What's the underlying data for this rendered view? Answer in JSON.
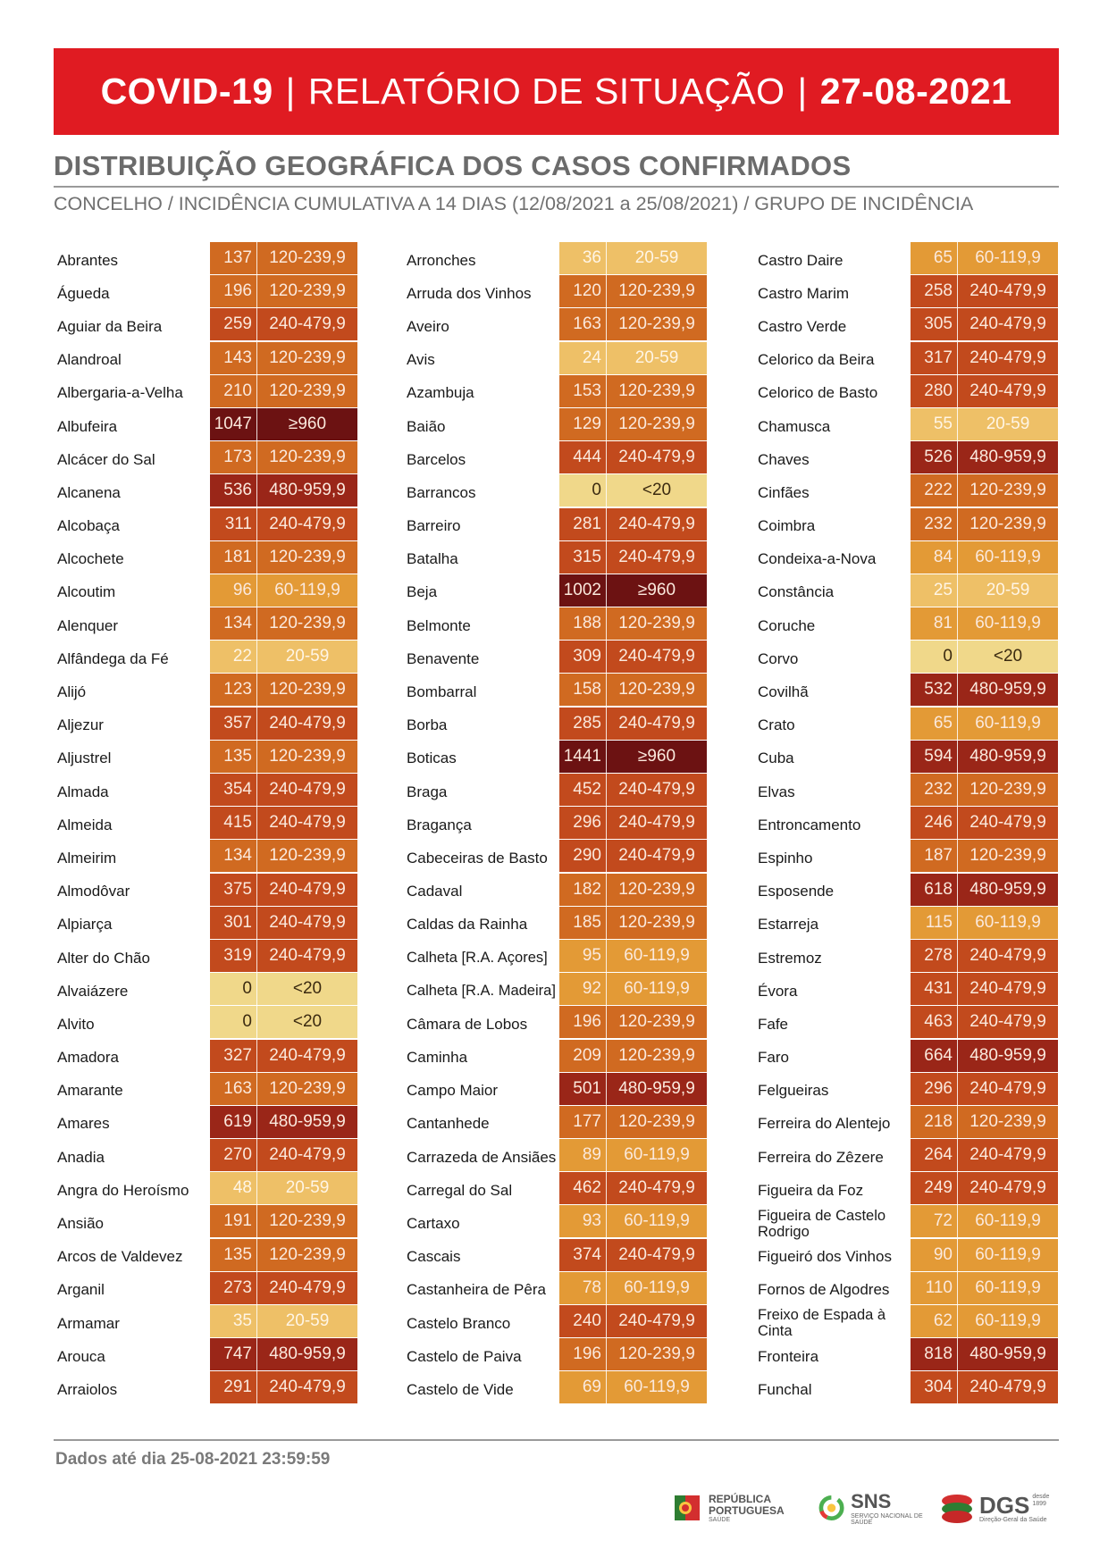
{
  "header": {
    "part1": "COVID-19",
    "sep": "|",
    "part2": "RELATÓRIO DE SITUAÇÃO",
    "part3": "27-08-2021"
  },
  "section_title": "DISTRIBUIÇÃO GEOGRÁFICA DOS CASOS CONFIRMADOS",
  "subtitle": "CONCELHO / INCIDÊNCIA CUMULATIVA A 14 DIAS (12/08/2021 a 25/08/2021) / GRUPO DE INCIDÊNCIA",
  "footer": "Dados até dia 25-08-2021 23:59:59",
  "logos": {
    "republica_line1": "REPÚBLICA",
    "republica_line2": "PORTUGUESA",
    "republica_line3": "SAÚDE",
    "sns": "SNS",
    "sns_sub": "SERVIÇO NACIONAL DE SAÚDE",
    "dgs": "DGS",
    "dgs_since": "desde 1899",
    "dgs_sub": "Direção-Geral da Saúde"
  },
  "colors": {
    "lt20": "#f0d88a",
    "20-59": "#eec067",
    "60-119,9": "#e39a36",
    "120-239,9": "#d06a21",
    "240-479,9": "#c24a1d",
    "480-959,9": "#9a2618",
    "ge960": "#6c1212"
  },
  "columns": [
    [
      {
        "name": "Abrantes",
        "value": "137",
        "group": "120-239,9"
      },
      {
        "name": "Águeda",
        "value": "196",
        "group": "120-239,9"
      },
      {
        "name": "Aguiar da Beira",
        "value": "259",
        "group": "240-479,9"
      },
      {
        "name": "Alandroal",
        "value": "143",
        "group": "120-239,9"
      },
      {
        "name": "Albergaria-a-Velha",
        "value": "210",
        "group": "120-239,9"
      },
      {
        "name": "Albufeira",
        "value": "1047",
        "group": "≥960"
      },
      {
        "name": "Alcácer do Sal",
        "value": "173",
        "group": "120-239,9"
      },
      {
        "name": "Alcanena",
        "value": "536",
        "group": "480-959,9"
      },
      {
        "name": "Alcobaça",
        "value": "311",
        "group": "240-479,9"
      },
      {
        "name": "Alcochete",
        "value": "181",
        "group": "120-239,9"
      },
      {
        "name": "Alcoutim",
        "value": "96",
        "group": "60-119,9"
      },
      {
        "name": "Alenquer",
        "value": "134",
        "group": "120-239,9"
      },
      {
        "name": "Alfândega da Fé",
        "value": "22",
        "group": "20-59"
      },
      {
        "name": "Alijó",
        "value": "123",
        "group": "120-239,9"
      },
      {
        "name": "Aljezur",
        "value": "357",
        "group": "240-479,9"
      },
      {
        "name": "Aljustrel",
        "value": "135",
        "group": "120-239,9"
      },
      {
        "name": "Almada",
        "value": "354",
        "group": "240-479,9"
      },
      {
        "name": "Almeida",
        "value": "415",
        "group": "240-479,9"
      },
      {
        "name": "Almeirim",
        "value": "134",
        "group": "120-239,9"
      },
      {
        "name": "Almodôvar",
        "value": "375",
        "group": "240-479,9"
      },
      {
        "name": "Alpiarça",
        "value": "301",
        "group": "240-479,9"
      },
      {
        "name": "Alter do Chão",
        "value": "319",
        "group": "240-479,9"
      },
      {
        "name": "Alvaiázere",
        "value": "0",
        "group": "<20"
      },
      {
        "name": "Alvito",
        "value": "0",
        "group": "<20"
      },
      {
        "name": "Amadora",
        "value": "327",
        "group": "240-479,9"
      },
      {
        "name": "Amarante",
        "value": "163",
        "group": "120-239,9"
      },
      {
        "name": "Amares",
        "value": "619",
        "group": "480-959,9"
      },
      {
        "name": "Anadia",
        "value": "270",
        "group": "240-479,9"
      },
      {
        "name": "Angra do Heroísmo",
        "value": "48",
        "group": "20-59"
      },
      {
        "name": "Ansião",
        "value": "191",
        "group": "120-239,9"
      },
      {
        "name": "Arcos de Valdevez",
        "value": "135",
        "group": "120-239,9"
      },
      {
        "name": "Arganil",
        "value": "273",
        "group": "240-479,9"
      },
      {
        "name": "Armamar",
        "value": "35",
        "group": "20-59"
      },
      {
        "name": "Arouca",
        "value": "747",
        "group": "480-959,9"
      },
      {
        "name": "Arraiolos",
        "value": "291",
        "group": "240-479,9"
      }
    ],
    [
      {
        "name": "Arronches",
        "value": "36",
        "group": "20-59"
      },
      {
        "name": "Arruda dos Vinhos",
        "value": "120",
        "group": "120-239,9"
      },
      {
        "name": "Aveiro",
        "value": "163",
        "group": "120-239,9"
      },
      {
        "name": "Avis",
        "value": "24",
        "group": "20-59"
      },
      {
        "name": "Azambuja",
        "value": "153",
        "group": "120-239,9"
      },
      {
        "name": "Baião",
        "value": "129",
        "group": "120-239,9"
      },
      {
        "name": "Barcelos",
        "value": "444",
        "group": "240-479,9"
      },
      {
        "name": "Barrancos",
        "value": "0",
        "group": "<20"
      },
      {
        "name": "Barreiro",
        "value": "281",
        "group": "240-479,9"
      },
      {
        "name": "Batalha",
        "value": "315",
        "group": "240-479,9"
      },
      {
        "name": "Beja",
        "value": "1002",
        "group": "≥960"
      },
      {
        "name": "Belmonte",
        "value": "188",
        "group": "120-239,9"
      },
      {
        "name": "Benavente",
        "value": "309",
        "group": "240-479,9"
      },
      {
        "name": "Bombarral",
        "value": "158",
        "group": "120-239,9"
      },
      {
        "name": "Borba",
        "value": "285",
        "group": "240-479,9"
      },
      {
        "name": "Boticas",
        "value": "1441",
        "group": "≥960"
      },
      {
        "name": "Braga",
        "value": "452",
        "group": "240-479,9"
      },
      {
        "name": "Bragança",
        "value": "296",
        "group": "240-479,9"
      },
      {
        "name": "Cabeceiras de Basto",
        "value": "290",
        "group": "240-479,9"
      },
      {
        "name": "Cadaval",
        "value": "182",
        "group": "120-239,9"
      },
      {
        "name": "Caldas da Rainha",
        "value": "185",
        "group": "120-239,9"
      },
      {
        "name": "Calheta [R.A. Açores]",
        "value": "95",
        "group": "60-119,9"
      },
      {
        "name": "Calheta [R.A. Madeira]",
        "value": "92",
        "group": "60-119,9"
      },
      {
        "name": "Câmara de Lobos",
        "value": "196",
        "group": "120-239,9"
      },
      {
        "name": "Caminha",
        "value": "209",
        "group": "120-239,9"
      },
      {
        "name": "Campo Maior",
        "value": "501",
        "group": "480-959,9"
      },
      {
        "name": "Cantanhede",
        "value": "177",
        "group": "120-239,9"
      },
      {
        "name": "Carrazeda de Ansiães",
        "value": "89",
        "group": "60-119,9"
      },
      {
        "name": "Carregal do Sal",
        "value": "462",
        "group": "240-479,9"
      },
      {
        "name": "Cartaxo",
        "value": "93",
        "group": "60-119,9"
      },
      {
        "name": "Cascais",
        "value": "374",
        "group": "240-479,9"
      },
      {
        "name": "Castanheira de Pêra",
        "value": "78",
        "group": "60-119,9"
      },
      {
        "name": "Castelo Branco",
        "value": "240",
        "group": "240-479,9"
      },
      {
        "name": "Castelo de Paiva",
        "value": "196",
        "group": "120-239,9"
      },
      {
        "name": "Castelo de Vide",
        "value": "69",
        "group": "60-119,9"
      }
    ],
    [
      {
        "name": "Castro Daire",
        "value": "65",
        "group": "60-119,9"
      },
      {
        "name": "Castro Marim",
        "value": "258",
        "group": "240-479,9"
      },
      {
        "name": "Castro Verde",
        "value": "305",
        "group": "240-479,9"
      },
      {
        "name": "Celorico da Beira",
        "value": "317",
        "group": "240-479,9"
      },
      {
        "name": "Celorico de Basto",
        "value": "280",
        "group": "240-479,9"
      },
      {
        "name": "Chamusca",
        "value": "55",
        "group": "20-59"
      },
      {
        "name": "Chaves",
        "value": "526",
        "group": "480-959,9"
      },
      {
        "name": "Cinfães",
        "value": "222",
        "group": "120-239,9"
      },
      {
        "name": "Coimbra",
        "value": "232",
        "group": "120-239,9"
      },
      {
        "name": "Condeixa-a-Nova",
        "value": "84",
        "group": "60-119,9"
      },
      {
        "name": "Constância",
        "value": "25",
        "group": "20-59"
      },
      {
        "name": "Coruche",
        "value": "81",
        "group": "60-119,9"
      },
      {
        "name": "Corvo",
        "value": "0",
        "group": "<20"
      },
      {
        "name": "Covilhã",
        "value": "532",
        "group": "480-959,9"
      },
      {
        "name": "Crato",
        "value": "65",
        "group": "60-119,9"
      },
      {
        "name": "Cuba",
        "value": "594",
        "group": "480-959,9"
      },
      {
        "name": "Elvas",
        "value": "232",
        "group": "120-239,9"
      },
      {
        "name": "Entroncamento",
        "value": "246",
        "group": "240-479,9"
      },
      {
        "name": "Espinho",
        "value": "187",
        "group": "120-239,9"
      },
      {
        "name": "Esposende",
        "value": "618",
        "group": "480-959,9"
      },
      {
        "name": "Estarreja",
        "value": "115",
        "group": "60-119,9"
      },
      {
        "name": "Estremoz",
        "value": "278",
        "group": "240-479,9"
      },
      {
        "name": "Évora",
        "value": "431",
        "group": "240-479,9"
      },
      {
        "name": "Fafe",
        "value": "463",
        "group": "240-479,9"
      },
      {
        "name": "Faro",
        "value": "664",
        "group": "480-959,9"
      },
      {
        "name": "Felgueiras",
        "value": "296",
        "group": "240-479,9"
      },
      {
        "name": "Ferreira do Alentejo",
        "value": "218",
        "group": "120-239,9"
      },
      {
        "name": "Ferreira do Zêzere",
        "value": "264",
        "group": "240-479,9"
      },
      {
        "name": "Figueira da Foz",
        "value": "249",
        "group": "240-479,9"
      },
      {
        "name": "Figueira de Castelo Rodrigo",
        "value": "72",
        "group": "60-119,9"
      },
      {
        "name": "Figueiró dos Vinhos",
        "value": "90",
        "group": "60-119,9"
      },
      {
        "name": "Fornos de Algodres",
        "value": "110",
        "group": "60-119,9"
      },
      {
        "name": "Freixo de Espada à Cinta",
        "value": "62",
        "group": "60-119,9"
      },
      {
        "name": "Fronteira",
        "value": "818",
        "group": "480-959,9"
      },
      {
        "name": "Funchal",
        "value": "304",
        "group": "240-479,9"
      }
    ]
  ]
}
